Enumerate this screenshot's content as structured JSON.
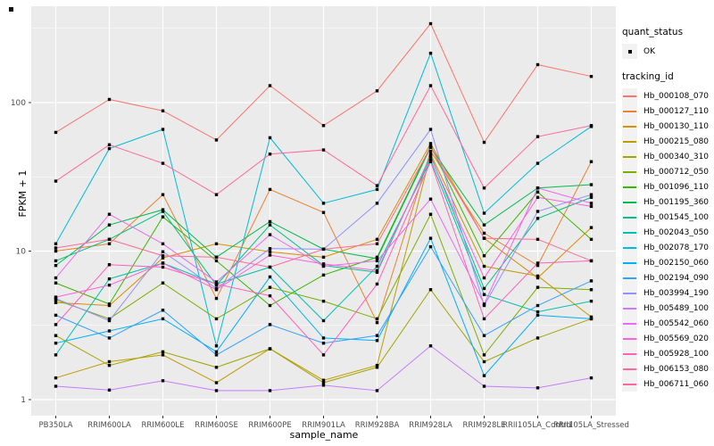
{
  "axes": {
    "x_title": "sample_name",
    "y_title": "FPKM + 1"
  },
  "legend": {
    "quant_title": "quant_status",
    "quant_items": [
      {
        "label": "OK",
        "symbol": "black-point"
      }
    ],
    "tracking_title": "tracking_id"
  },
  "chart_data": {
    "type": "line",
    "title": "",
    "xlabel": "sample_name",
    "ylabel": "FPKM + 1",
    "y_scale": "log10",
    "ylim": [
      0.79,
      445
    ],
    "grid": "on",
    "legend_position": "right",
    "panel_bg": "#EBEBEB",
    "grid_color": "#FFFFFF",
    "point_color": "#000000",
    "y_ticks": [
      {
        "label": "1",
        "value": 1
      },
      {
        "label": "10",
        "value": 10
      },
      {
        "label": "100",
        "value": 100
      }
    ],
    "y_minor_ticks": [
      3.1623,
      31.623,
      316.23
    ],
    "categories": [
      "PB350LA",
      "RRIM600LA",
      "RRIM600LE",
      "RRIM600SE",
      "RRIM600PE",
      "RRIM901LA",
      "RRIM928BA",
      "RRIM928LA",
      "RRIM928LE",
      "RRII105LA_Control",
      "RRII105LA_Stressed"
    ],
    "series": [
      {
        "name": "Hb_000108_070",
        "color": "#F8766D",
        "values": [
          63,
          105,
          88,
          56,
          130,
          70,
          120,
          340,
          54,
          180,
          150
        ]
      },
      {
        "name": "Hb_000127_110",
        "color": "#EA8331",
        "values": [
          10,
          11.2,
          24,
          4.8,
          26,
          18.2,
          3.3,
          47,
          13.2,
          8,
          40
        ]
      },
      {
        "name": "Hb_000130_110",
        "color": "#D89000",
        "values": [
          4.5,
          4.3,
          9,
          11.2,
          9.9,
          9.1,
          12,
          53,
          12.2,
          6.6,
          14.4
        ]
      },
      {
        "name": "Hb_000215_080",
        "color": "#C09B00",
        "values": [
          1.4,
          1.8,
          2,
          1.3,
          2.2,
          1.35,
          1.7,
          45,
          7.9,
          6.8,
          3.6
        ]
      },
      {
        "name": "Hb_000340_310",
        "color": "#A3A500",
        "values": [
          2.7,
          1.7,
          2.1,
          1.65,
          2.2,
          1.3,
          1.65,
          5.5,
          1.8,
          2.6,
          3.5
        ]
      },
      {
        "name": "Hb_000712_050",
        "color": "#7CAE00",
        "values": [
          4.7,
          3.5,
          6.1,
          3.5,
          5.7,
          4.6,
          3.5,
          17.7,
          2,
          5.7,
          5.5
        ]
      },
      {
        "name": "Hb_001096_110",
        "color": "#39B600",
        "values": [
          6.1,
          4.4,
          17,
          8.6,
          4.3,
          6.9,
          9.1,
          51,
          9.3,
          25,
          12
        ]
      },
      {
        "name": "Hb_001195_360",
        "color": "#00BB4E",
        "values": [
          8,
          15,
          19,
          9.1,
          15.8,
          10.3,
          8.9,
          50,
          15,
          26.6,
          28
        ]
      },
      {
        "name": "Hb_001545_100",
        "color": "#00C087",
        "values": [
          8.6,
          12,
          18.5,
          5.9,
          15,
          8,
          7.2,
          44,
          5.6,
          16.6,
          23
        ]
      },
      {
        "name": "Hb_002043_050",
        "color": "#00C0AF",
        "values": [
          2,
          6.5,
          8.3,
          6,
          7.8,
          3.4,
          7.9,
          41,
          5.1,
          3.9,
          4.6
        ]
      },
      {
        "name": "Hb_002078_170",
        "color": "#00BCD8",
        "values": [
          11.2,
          49,
          66,
          2.3,
          58,
          21,
          26,
          215,
          18,
          39,
          69
        ]
      },
      {
        "name": "Hb_002150_060",
        "color": "#00B0F6",
        "values": [
          2.4,
          2.9,
          3.5,
          2.1,
          6.7,
          2.6,
          2.5,
          12.2,
          1.45,
          3.7,
          3.5
        ]
      },
      {
        "name": "Hb_002194_090",
        "color": "#35A2FF",
        "values": [
          3.7,
          2.6,
          4,
          2,
          3.2,
          2.4,
          2.7,
          10.7,
          2.7,
          4.3,
          6.3
        ]
      },
      {
        "name": "Hb_003994_190",
        "color": "#9590FF",
        "values": [
          4.8,
          3.4,
          9.9,
          5.6,
          10.4,
          10.3,
          21,
          66,
          4.3,
          18.5,
          24
        ]
      },
      {
        "name": "Hb_005489_100",
        "color": "#C77CFF",
        "values": [
          1.23,
          1.16,
          1.34,
          1.15,
          1.15,
          1.25,
          1.15,
          2.3,
          1.23,
          1.2,
          1.4
        ]
      },
      {
        "name": "Hb_005542_060",
        "color": "#E76BF3",
        "values": [
          6.6,
          17.7,
          11.2,
          6.2,
          12.9,
          7.9,
          8.6,
          22.4,
          4.4,
          26.6,
          21
        ]
      },
      {
        "name": "Hb_005569_020",
        "color": "#FA62DB",
        "values": [
          4.9,
          5.9,
          8.3,
          5.5,
          9.4,
          8.2,
          7.4,
          43,
          6.6,
          23,
          20
        ]
      },
      {
        "name": "Hb_005928_100",
        "color": "#FF62BC",
        "values": [
          3.2,
          8.1,
          7.8,
          6,
          5,
          2,
          6,
          40,
          3.5,
          8.3,
          8.6
        ]
      },
      {
        "name": "Hb_006153_080",
        "color": "#FF6A98",
        "values": [
          10.5,
          12,
          9.3,
          9.1,
          7.8,
          10.3,
          11.2,
          50,
          12.2,
          12,
          8.6
        ]
      },
      {
        "name": "Hb_006711_060",
        "color": "#FF689F",
        "values": [
          29.6,
          52,
          39,
          24,
          45,
          48,
          27.6,
          130,
          26.6,
          59,
          70
        ]
      }
    ]
  }
}
